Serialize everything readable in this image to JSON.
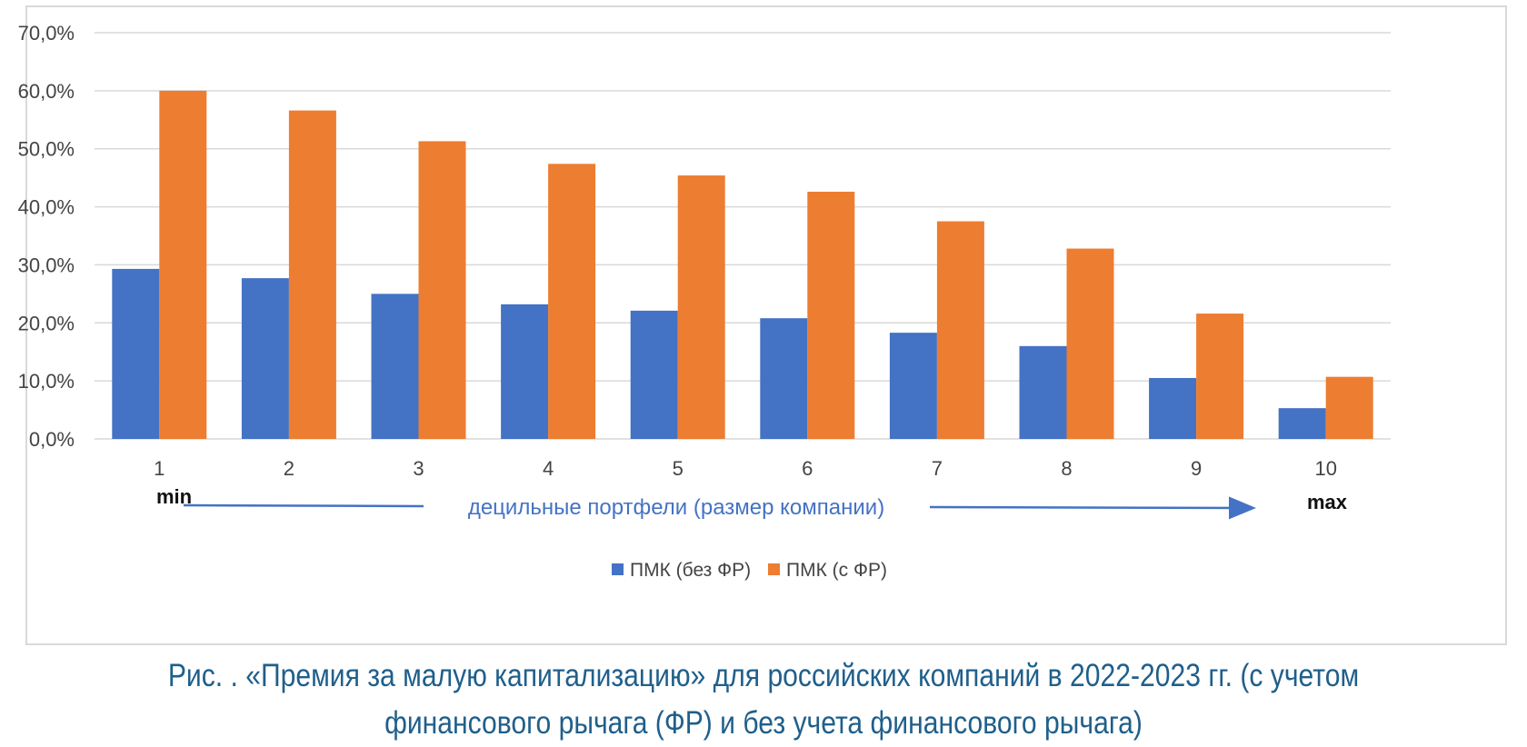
{
  "chart_data": {
    "type": "bar",
    "categories": [
      "1",
      "2",
      "3",
      "4",
      "5",
      "6",
      "7",
      "8",
      "9",
      "10"
    ],
    "series": [
      {
        "name": "ПМК (без ФР)",
        "color": "#4472c4",
        "values": [
          29.3,
          27.7,
          25.0,
          23.2,
          22.1,
          20.8,
          18.3,
          16.0,
          10.5,
          5.3
        ]
      },
      {
        "name": "ПМК (с ФР)",
        "color": "#ed7d31",
        "values": [
          60.0,
          56.6,
          51.3,
          47.4,
          45.4,
          42.6,
          37.5,
          32.8,
          21.6,
          10.7
        ]
      }
    ],
    "yticks": [
      "0,0%",
      "10,0%",
      "20,0%",
      "30,0%",
      "40,0%",
      "50,0%",
      "60,0%",
      "70,0%"
    ],
    "ylim": [
      0,
      70
    ],
    "xlabel": "децильные портфели (размер компании)",
    "min_label": "min",
    "max_label": "max",
    "grid": true,
    "legend_position": "bottom"
  },
  "caption": {
    "line1": "Рис.   .  «Премия за малую капитализацию» для российских компаний в 2022-2023 гг. (с учетом",
    "line2": "финансового рычага (ФР) и без учета финансового рычага)"
  }
}
